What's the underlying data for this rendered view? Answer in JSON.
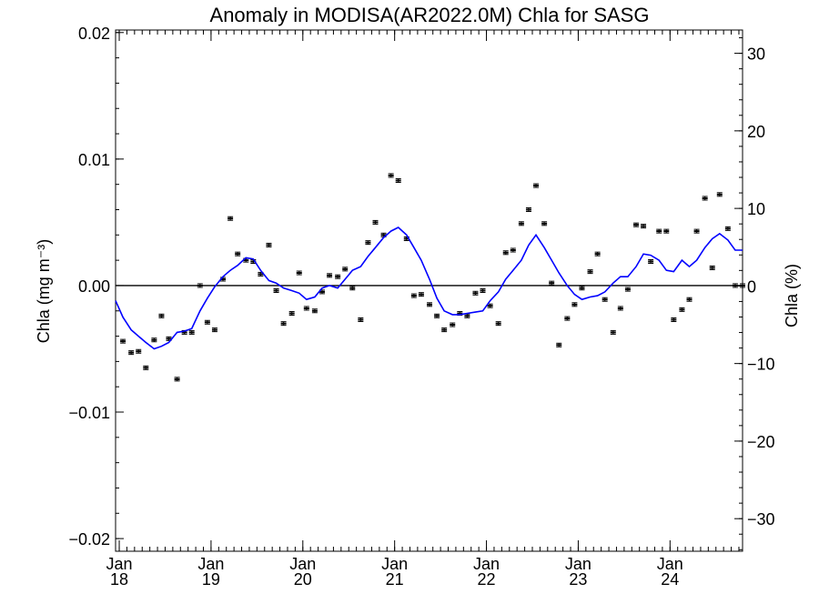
{
  "chart_data": {
    "type": "line",
    "title": "Anomaly in MODISA(AR2022.0M) Chla for SASG",
    "ylabel": "Chla (mg m⁻³)",
    "ylabel_right": "Chla (%)",
    "ylim": [
      -0.021,
      0.0202
    ],
    "ylim_right": [
      -34.2,
      33.0
    ],
    "xlim": [
      2017.96,
      2024.79
    ],
    "y_ticks": [
      {
        "value": -0.02,
        "label": "−0.02"
      },
      {
        "value": -0.01,
        "label": "−0.01"
      },
      {
        "value": 0.0,
        "label": "0.00"
      },
      {
        "value": 0.01,
        "label": "0.01"
      },
      {
        "value": 0.02,
        "label": "0.02"
      }
    ],
    "y_ticks_right": [
      {
        "value": -30,
        "label": "−30"
      },
      {
        "value": -20,
        "label": "−20"
      },
      {
        "value": -10,
        "label": "−10"
      },
      {
        "value": 0,
        "label": "0"
      },
      {
        "value": 10,
        "label": "10"
      },
      {
        "value": 20,
        "label": "20"
      },
      {
        "value": 30,
        "label": "30"
      }
    ],
    "x_ticks": [
      {
        "value": 2018,
        "month": "Jan",
        "year": "18"
      },
      {
        "value": 2019,
        "month": "Jan",
        "year": "19"
      },
      {
        "value": 2020,
        "month": "Jan",
        "year": "20"
      },
      {
        "value": 2021,
        "month": "Jan",
        "year": "21"
      },
      {
        "value": 2022,
        "month": "Jan",
        "year": "22"
      },
      {
        "value": 2023,
        "month": "Jan",
        "year": "23"
      },
      {
        "value": 2024,
        "month": "Jan",
        "year": "24"
      }
    ],
    "series": [
      {
        "kind": "points-with-error",
        "error": 0.0001,
        "color": "#000000",
        "x": [
          2018.04,
          2018.13,
          2018.21,
          2018.29,
          2018.38,
          2018.46,
          2018.54,
          2018.63,
          2018.71,
          2018.79,
          2018.88,
          2018.96,
          2019.04,
          2019.13,
          2019.21,
          2019.29,
          2019.38,
          2019.46,
          2019.54,
          2019.63,
          2019.71,
          2019.79,
          2019.88,
          2019.96,
          2020.04,
          2020.13,
          2020.21,
          2020.29,
          2020.38,
          2020.46,
          2020.54,
          2020.63,
          2020.71,
          2020.79,
          2020.88,
          2020.96,
          2021.04,
          2021.13,
          2021.21,
          2021.29,
          2021.38,
          2021.46,
          2021.54,
          2021.63,
          2021.71,
          2021.79,
          2021.88,
          2021.96,
          2022.04,
          2022.13,
          2022.21,
          2022.29,
          2022.38,
          2022.46,
          2022.54,
          2022.63,
          2022.71,
          2022.79,
          2022.88,
          2022.96,
          2023.04,
          2023.13,
          2023.21,
          2023.29,
          2023.38,
          2023.46,
          2023.54,
          2023.63,
          2023.71,
          2023.79,
          2023.88,
          2023.96,
          2024.04,
          2024.13,
          2024.21,
          2024.29,
          2024.38,
          2024.46,
          2024.54,
          2024.63,
          2024.71,
          2024.79
        ],
        "y": [
          -0.0044,
          -0.0053,
          -0.0052,
          -0.0065,
          -0.0043,
          -0.0024,
          -0.0042,
          -0.0074,
          -0.0037,
          -0.0037,
          0.0,
          -0.0029,
          -0.0035,
          0.0005,
          0.0053,
          0.0025,
          0.002,
          0.0019,
          0.0009,
          0.0032,
          -0.0004,
          -0.003,
          -0.0022,
          0.001,
          -0.0018,
          -0.002,
          -0.0005,
          0.0008,
          0.0007,
          0.0013,
          -0.0002,
          -0.0027,
          0.0034,
          0.005,
          0.004,
          0.0087,
          0.0083,
          0.0037,
          -0.0008,
          -0.0007,
          -0.0015,
          -0.0024,
          -0.0035,
          -0.0031,
          -0.0022,
          -0.0024,
          -0.0006,
          -0.0004,
          -0.0016,
          -0.003,
          0.0026,
          0.0028,
          0.0049,
          0.006,
          0.0079,
          0.0049,
          0.0002,
          -0.0047,
          -0.0026,
          -0.0015,
          -0.0002,
          0.0011,
          0.0025,
          -0.0011,
          -0.0037,
          -0.0018,
          -0.0003,
          0.0048,
          0.0047,
          0.0019,
          0.0043,
          0.0043,
          -0.0027,
          -0.0019,
          -0.0011,
          0.0043,
          0.0069,
          0.0014,
          0.0072,
          0.0045,
          0.0,
          0.0
        ]
      },
      {
        "kind": "line",
        "color": "#0000ff",
        "x": [
          2017.96,
          2018.04,
          2018.13,
          2018.21,
          2018.29,
          2018.38,
          2018.46,
          2018.54,
          2018.63,
          2018.71,
          2018.79,
          2018.88,
          2018.96,
          2019.04,
          2019.13,
          2019.21,
          2019.29,
          2019.38,
          2019.46,
          2019.54,
          2019.63,
          2019.71,
          2019.79,
          2019.88,
          2019.96,
          2020.04,
          2020.13,
          2020.21,
          2020.29,
          2020.38,
          2020.46,
          2020.54,
          2020.63,
          2020.71,
          2020.79,
          2020.88,
          2020.96,
          2021.04,
          2021.13,
          2021.21,
          2021.29,
          2021.38,
          2021.46,
          2021.54,
          2021.63,
          2021.71,
          2021.79,
          2021.88,
          2021.96,
          2022.04,
          2022.13,
          2022.21,
          2022.29,
          2022.38,
          2022.46,
          2022.54,
          2022.63,
          2022.71,
          2022.79,
          2022.88,
          2022.96,
          2023.04,
          2023.13,
          2023.21,
          2023.29,
          2023.38,
          2023.46,
          2023.54,
          2023.63,
          2023.71,
          2023.79,
          2023.88,
          2023.96,
          2024.04,
          2024.13,
          2024.21,
          2024.29,
          2024.38,
          2024.46,
          2024.54,
          2024.63,
          2024.71,
          2024.79
        ],
        "y": [
          -0.0012,
          -0.0025,
          -0.0035,
          -0.004,
          -0.0045,
          -0.005,
          -0.0048,
          -0.0045,
          -0.0037,
          -0.0036,
          -0.0034,
          -0.002,
          -0.001,
          -0.0001,
          0.0007,
          0.0012,
          0.0016,
          0.0022,
          0.0021,
          0.0012,
          0.0004,
          0.0002,
          -0.0002,
          -0.0004,
          -0.0006,
          -0.0011,
          -0.0009,
          -0.0002,
          0.0,
          -0.0002,
          0.0005,
          0.0012,
          0.0015,
          0.0023,
          0.003,
          0.0038,
          0.0043,
          0.0046,
          0.004,
          0.003,
          0.002,
          0.0005,
          -0.001,
          -0.002,
          -0.0023,
          -0.0023,
          -0.0022,
          -0.0021,
          -0.002,
          -0.0012,
          -0.0005,
          0.0005,
          0.0012,
          0.002,
          0.0032,
          0.004,
          0.003,
          0.002,
          0.001,
          0.0,
          -0.0007,
          -0.0011,
          -0.0009,
          -0.0008,
          -0.0005,
          0.0002,
          0.0007,
          0.0007,
          0.0015,
          0.0025,
          0.0024,
          0.002,
          0.0012,
          0.0011,
          0.002,
          0.0015,
          0.002,
          0.003,
          0.0037,
          0.0041,
          0.0036,
          0.0028,
          0.0028
        ]
      }
    ]
  }
}
